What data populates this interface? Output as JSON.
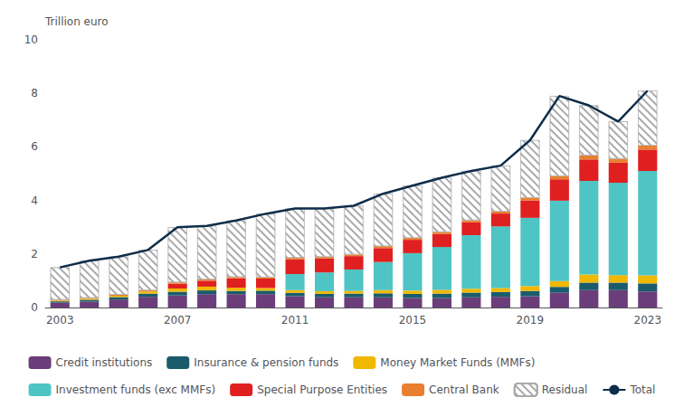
{
  "chart_data": {
    "type": "bar",
    "stacked": true,
    "ylabel": "Trillion euro",
    "categories": [
      "2003",
      null,
      null,
      null,
      "2007",
      null,
      null,
      null,
      "2011",
      null,
      null,
      null,
      "2015",
      null,
      null,
      null,
      "2019",
      null,
      null,
      null,
      "2023"
    ],
    "series": [
      {
        "name": "Credit institutions",
        "type": "bar",
        "color": "#6b3d7a",
        "values": [
          0.18,
          0.22,
          0.3,
          0.4,
          0.45,
          0.5,
          0.5,
          0.5,
          0.42,
          0.38,
          0.38,
          0.38,
          0.35,
          0.35,
          0.38,
          0.4,
          0.42,
          0.55,
          0.65,
          0.65,
          0.6
        ]
      },
      {
        "name": "Insurance & pension funds",
        "type": "bar",
        "color": "#1a5c6b",
        "values": [
          0.05,
          0.07,
          0.09,
          0.12,
          0.14,
          0.14,
          0.12,
          0.13,
          0.13,
          0.13,
          0.14,
          0.15,
          0.16,
          0.17,
          0.18,
          0.18,
          0.2,
          0.22,
          0.28,
          0.28,
          0.3
        ]
      },
      {
        "name": "Money Market Funds (MMFs)",
        "type": "bar",
        "color": "#f0b800",
        "values": [
          0.03,
          0.04,
          0.05,
          0.08,
          0.12,
          0.14,
          0.12,
          0.1,
          0.1,
          0.1,
          0.1,
          0.12,
          0.12,
          0.14,
          0.14,
          0.15,
          0.18,
          0.22,
          0.3,
          0.28,
          0.3
        ]
      },
      {
        "name": "Investment funds (exc MMFs)",
        "type": "bar",
        "color": "#4fc4c4",
        "values": [
          0.0,
          0.0,
          0.0,
          0.0,
          0.0,
          0.0,
          0.0,
          0.0,
          0.6,
          0.7,
          0.8,
          1.05,
          1.4,
          1.6,
          2.0,
          2.3,
          2.55,
          3.0,
          3.5,
          3.45,
          3.9
        ]
      },
      {
        "name": "Special Purpose Entities",
        "type": "bar",
        "color": "#e02020",
        "values": [
          0.0,
          0.0,
          0.0,
          0.0,
          0.18,
          0.22,
          0.35,
          0.35,
          0.55,
          0.52,
          0.5,
          0.52,
          0.5,
          0.48,
          0.48,
          0.48,
          0.65,
          0.8,
          0.8,
          0.75,
          0.8
        ]
      },
      {
        "name": "Central Bank",
        "type": "bar",
        "color": "#e88030",
        "values": [
          0.03,
          0.03,
          0.04,
          0.04,
          0.05,
          0.05,
          0.05,
          0.05,
          0.06,
          0.06,
          0.06,
          0.07,
          0.07,
          0.08,
          0.08,
          0.08,
          0.1,
          0.12,
          0.15,
          0.15,
          0.15
        ]
      },
      {
        "name": "Residual",
        "type": "bar",
        "color": "#ffffff",
        "values": [
          1.21,
          1.39,
          1.42,
          1.51,
          2.06,
          2.0,
          2.11,
          2.37,
          1.84,
          1.81,
          1.82,
          1.96,
          1.95,
          2.03,
          1.84,
          1.71,
          2.15,
          2.99,
          1.87,
          1.39,
          2.05
        ]
      },
      {
        "name": "Total",
        "type": "line",
        "color": "#0d2d4a",
        "values": [
          1.5,
          1.75,
          1.9,
          2.15,
          3.0,
          3.05,
          3.25,
          3.5,
          3.7,
          3.7,
          3.8,
          4.25,
          4.55,
          4.85,
          5.1,
          5.3,
          6.25,
          7.9,
          7.55,
          6.95,
          8.1
        ]
      }
    ],
    "ylim": [
      0,
      10
    ],
    "yticks": [
      0,
      2,
      4,
      6,
      8,
      10
    ],
    "grid": false,
    "legend": "bottom"
  }
}
